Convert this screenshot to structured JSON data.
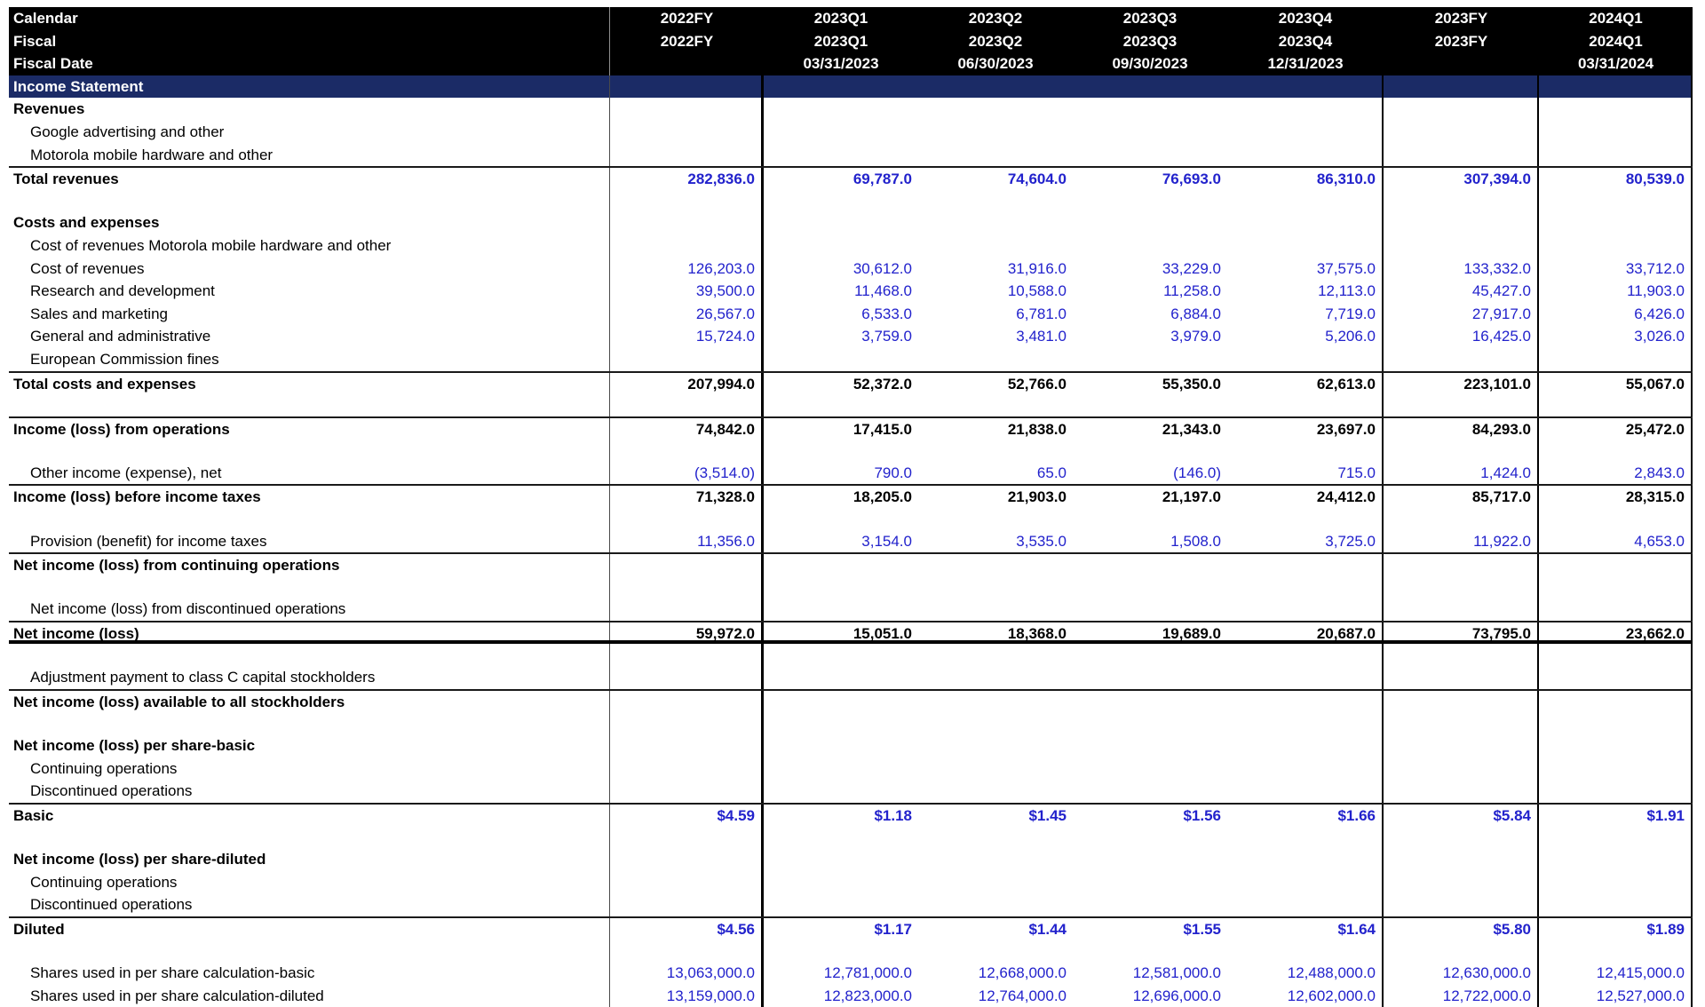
{
  "colors": {
    "header_bg": "#000000",
    "header_text": "#ffffff",
    "section_bg": "#1b2b66",
    "value_blue": "#2222cc"
  },
  "table": {
    "section_title": "Income Statement",
    "header": {
      "rows": [
        {
          "label": "Calendar",
          "values": [
            "2022FY",
            "2023Q1",
            "2023Q2",
            "2023Q3",
            "2023Q4",
            "2023FY",
            "2024Q1"
          ]
        },
        {
          "label": "Fiscal",
          "values": [
            "2022FY",
            "2023Q1",
            "2023Q2",
            "2023Q3",
            "2023Q4",
            "2023FY",
            "2024Q1"
          ]
        },
        {
          "label": "Fiscal Date",
          "values": [
            "",
            "03/31/2023",
            "06/30/2023",
            "09/30/2023",
            "12/31/2023",
            "",
            "03/31/2024"
          ]
        }
      ]
    },
    "rows": [
      {
        "label": "Revenues",
        "bold": true
      },
      {
        "label": "Google advertising and other",
        "indent": true
      },
      {
        "label": "Motorola mobile hardware and other",
        "indent": true
      },
      {
        "label": "Total revenues",
        "bold": true,
        "line_top": true,
        "value_style": "blue-bold",
        "values": [
          "282,836.0",
          "69,787.0",
          "74,604.0",
          "76,693.0",
          "86,310.0",
          "307,394.0",
          "80,539.0"
        ]
      },
      {
        "blank": true
      },
      {
        "label": "Costs and expenses",
        "bold": true
      },
      {
        "label": "Cost of revenues Motorola mobile hardware and other",
        "indent": true
      },
      {
        "label": "Cost of revenues",
        "indent": true,
        "value_style": "blue",
        "values": [
          "126,203.0",
          "30,612.0",
          "31,916.0",
          "33,229.0",
          "37,575.0",
          "133,332.0",
          "33,712.0"
        ]
      },
      {
        "label": "Research and development",
        "indent": true,
        "value_style": "blue",
        "values": [
          "39,500.0",
          "11,468.0",
          "10,588.0",
          "11,258.0",
          "12,113.0",
          "45,427.0",
          "11,903.0"
        ]
      },
      {
        "label": "Sales and marketing",
        "indent": true,
        "value_style": "blue",
        "values": [
          "26,567.0",
          "6,533.0",
          "6,781.0",
          "6,884.0",
          "7,719.0",
          "27,917.0",
          "6,426.0"
        ]
      },
      {
        "label": "General and administrative",
        "indent": true,
        "value_style": "blue",
        "values": [
          "15,724.0",
          "3,759.0",
          "3,481.0",
          "3,979.0",
          "5,206.0",
          "16,425.0",
          "3,026.0"
        ]
      },
      {
        "label": "European Commission fines",
        "indent": true
      },
      {
        "label": "Total costs and expenses",
        "bold": true,
        "line_top": true,
        "value_style": "black-bold",
        "values": [
          "207,994.0",
          "52,372.0",
          "52,766.0",
          "55,350.0",
          "62,613.0",
          "223,101.0",
          "55,067.0"
        ]
      },
      {
        "blank": true
      },
      {
        "label": "Income (loss) from operations",
        "bold": true,
        "line_top": true,
        "value_style": "black-bold",
        "values": [
          "74,842.0",
          "17,415.0",
          "21,838.0",
          "21,343.0",
          "23,697.0",
          "84,293.0",
          "25,472.0"
        ]
      },
      {
        "blank": true
      },
      {
        "label": "Other income (expense), net",
        "indent": true,
        "value_style": "blue",
        "values": [
          "(3,514.0)",
          "790.0",
          "65.0",
          "(146.0)",
          "715.0",
          "1,424.0",
          "2,843.0"
        ]
      },
      {
        "label": "Income (loss) before income taxes",
        "bold": true,
        "line_top": true,
        "value_style": "black-bold",
        "values": [
          "71,328.0",
          "18,205.0",
          "21,903.0",
          "21,197.0",
          "24,412.0",
          "85,717.0",
          "28,315.0"
        ]
      },
      {
        "blank": true
      },
      {
        "label": "Provision (benefit) for income taxes",
        "indent": true,
        "value_style": "blue",
        "values": [
          "11,356.0",
          "3,154.0",
          "3,535.0",
          "1,508.0",
          "3,725.0",
          "11,922.0",
          "4,653.0"
        ]
      },
      {
        "label": "Net income (loss) from continuing operations",
        "bold": true,
        "line_top": true
      },
      {
        "blank": true
      },
      {
        "label": "Net income (loss) from discontinued operations",
        "indent": true
      },
      {
        "label": "Net income (loss)",
        "bold": true,
        "line_top": true,
        "line_bottom_thick": true,
        "value_style": "black-bold",
        "values": [
          "59,972.0",
          "15,051.0",
          "18,368.0",
          "19,689.0",
          "20,687.0",
          "73,795.0",
          "23,662.0"
        ]
      },
      {
        "blank": true
      },
      {
        "label": "Adjustment payment to class C capital stockholders",
        "indent": true
      },
      {
        "label": "Net income (loss) available to all stockholders",
        "bold": true,
        "line_top": true
      },
      {
        "blank": true
      },
      {
        "label": "Net income (loss) per share-basic",
        "bold": true
      },
      {
        "label": "Continuing operations",
        "indent": true
      },
      {
        "label": "Discontinued operations",
        "indent": true
      },
      {
        "label": "Basic",
        "bold": true,
        "line_top": true,
        "value_style": "blue-bold",
        "values": [
          "$4.59",
          "$1.18",
          "$1.45",
          "$1.56",
          "$1.66",
          "$5.84",
          "$1.91"
        ]
      },
      {
        "blank": true
      },
      {
        "label": "Net income (loss) per share-diluted",
        "bold": true
      },
      {
        "label": "Continuing operations",
        "indent": true
      },
      {
        "label": "Discontinued operations",
        "indent": true
      },
      {
        "label": "Diluted",
        "bold": true,
        "line_top": true,
        "value_style": "blue-bold",
        "values": [
          "$4.56",
          "$1.17",
          "$1.44",
          "$1.55",
          "$1.64",
          "$5.80",
          "$1.89"
        ]
      },
      {
        "blank": true
      },
      {
        "label": "Shares used in per share calculation-basic",
        "indent": true,
        "value_style": "blue",
        "values": [
          "13,063,000.0",
          "12,781,000.0",
          "12,668,000.0",
          "12,581,000.0",
          "12,488,000.0",
          "12,630,000.0",
          "12,415,000.0"
        ]
      },
      {
        "label": "Shares used in per share calculation-diluted",
        "indent": true,
        "value_style": "blue",
        "values": [
          "13,159,000.0",
          "12,823,000.0",
          "12,764,000.0",
          "12,696,000.0",
          "12,602,000.0",
          "12,722,000.0",
          "12,527,000.0"
        ]
      }
    ]
  }
}
